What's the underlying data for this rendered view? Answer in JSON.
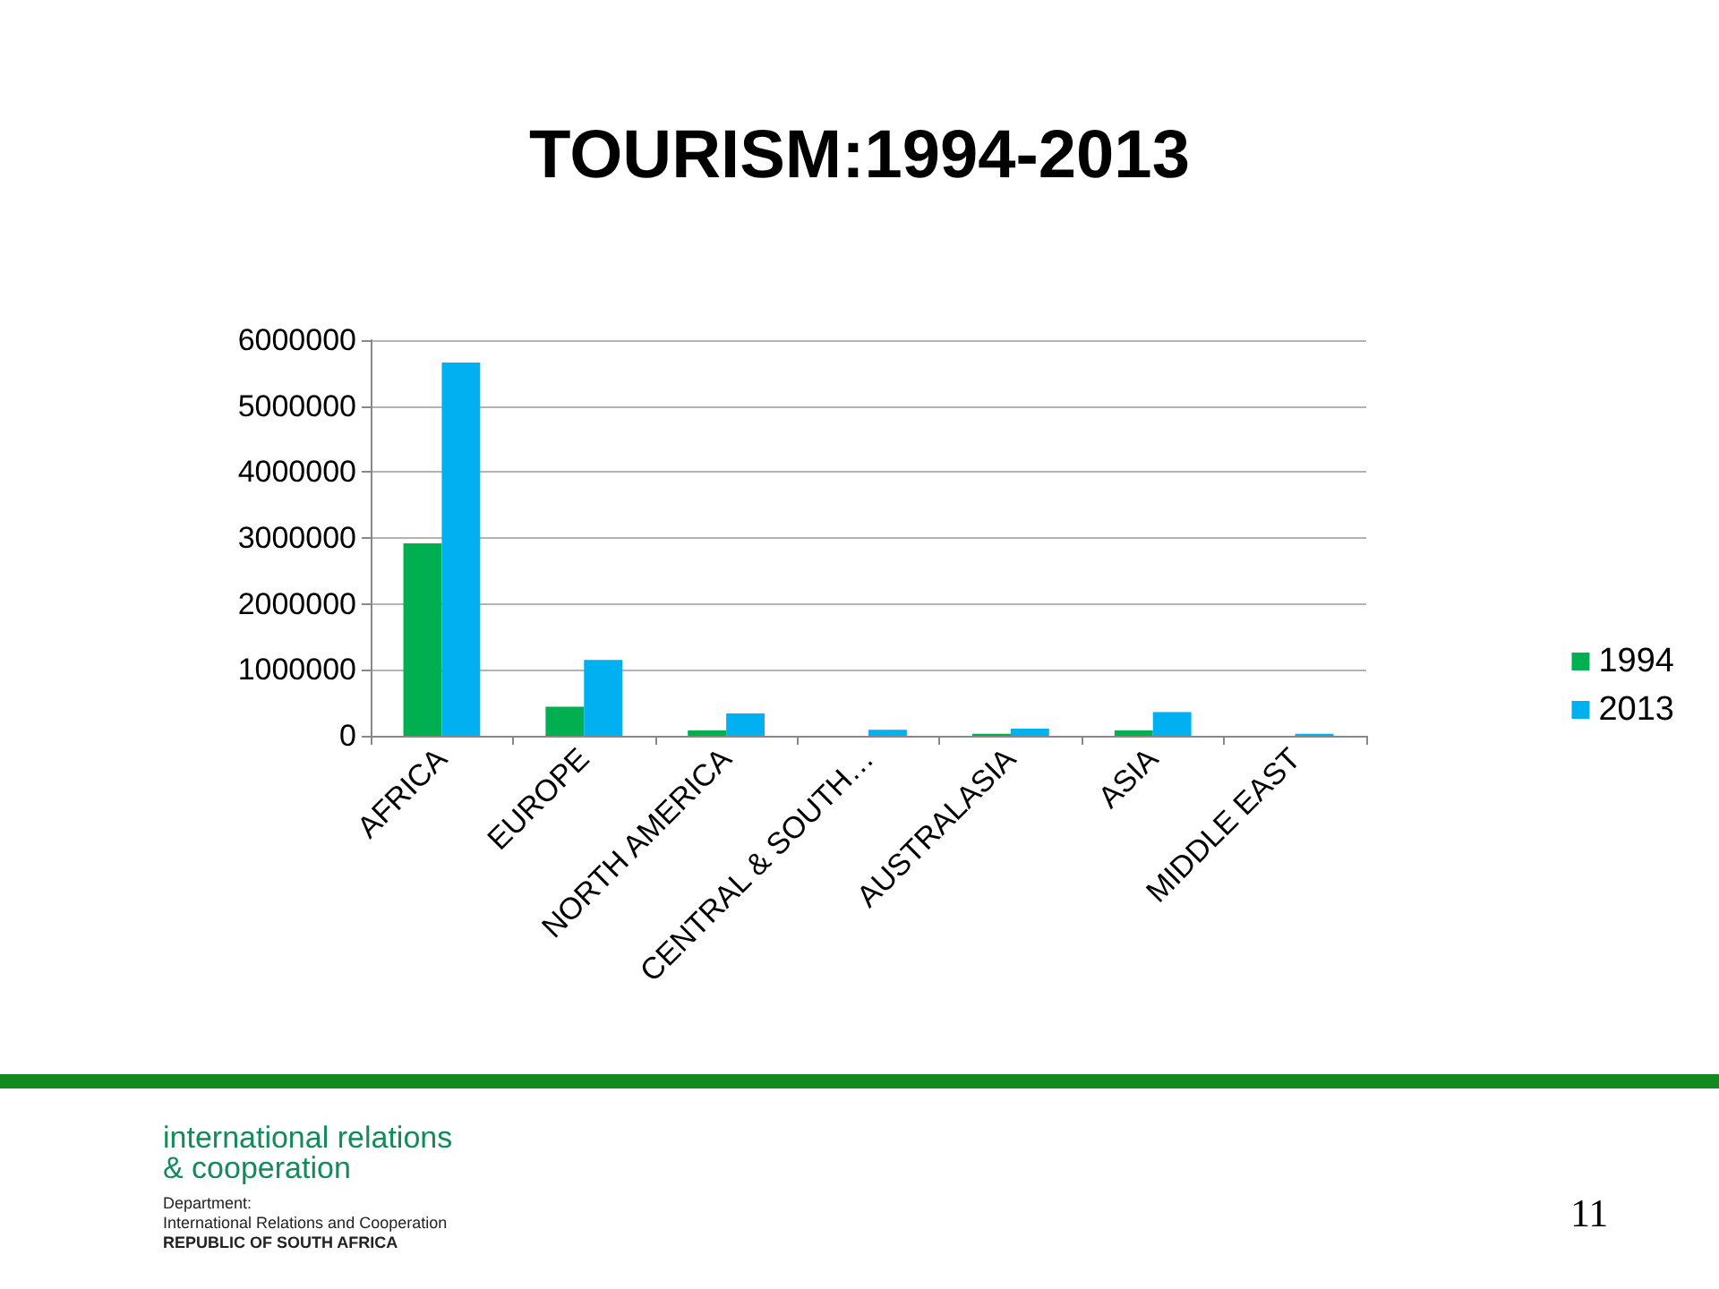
{
  "chart_data": {
    "type": "bar",
    "title": "TOURISM:1994-2013",
    "categories": [
      "AFRICA",
      "EUROPE",
      "NORTH AMERICA",
      "CENTRAL & SOUTH…",
      "AUSTRALASIA",
      "ASIA",
      "MIDDLE EAST"
    ],
    "series": [
      {
        "name": "1994",
        "color": "#00b050",
        "values": [
          2920000,
          440000,
          80000,
          0,
          30000,
          80000,
          0
        ]
      },
      {
        "name": "2013",
        "color": "#00b0f0",
        "values": [
          5660000,
          1150000,
          340000,
          90000,
          110000,
          360000,
          30000
        ]
      }
    ],
    "ylim": [
      0,
      6000000
    ],
    "yticks": [
      0,
      1000000,
      2000000,
      3000000,
      4000000,
      5000000,
      6000000
    ],
    "grid": "y",
    "legend": "right",
    "annotations": [
      "international relations",
      "& cooperation",
      "Department:",
      "International Relations and Cooperation",
      "REPUBLIC OF SOUTH AFRICA",
      "11"
    ]
  }
}
